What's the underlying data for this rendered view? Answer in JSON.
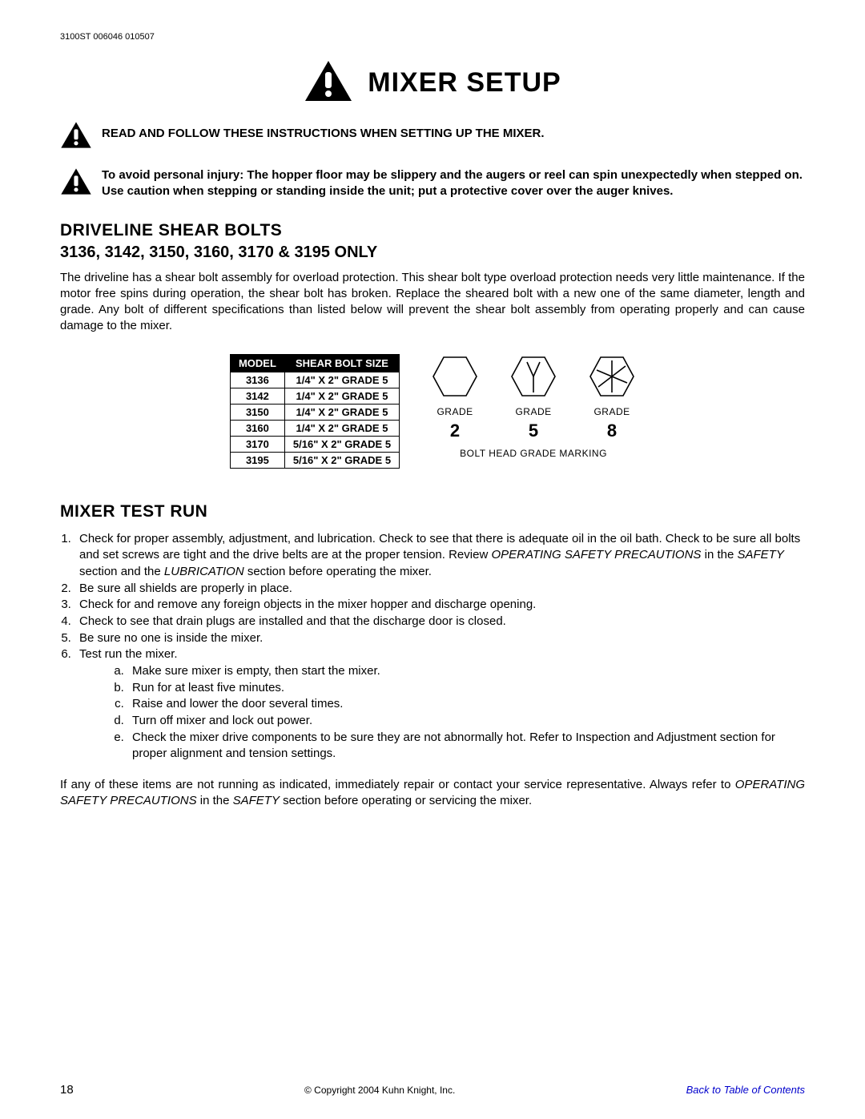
{
  "doc_id": "3100ST 006046 010507",
  "title": "MIXER SETUP",
  "warning1": "READ AND FOLLOW THESE INSTRUCTIONS WHEN SETTING UP THE MIXER.",
  "warning2": "To avoid personal injury: The hopper floor may be slippery and the augers or reel can spin unexpectedly when stepped on. Use caution when stepping or standing inside the unit; put a protective cover over the auger knives.",
  "sec1_h": "DRIVELINE SHEAR BOLTS",
  "sec1_sub": "3136, 3142, 3150, 3160, 3170 & 3195 ONLY",
  "sec1_p": "The driveline has a shear bolt assembly for overload protection. This shear bolt type overload protection needs very little maintenance. If the motor free spins during operation, the shear bolt has broken. Replace the sheared bolt with a new one of the same diameter, length and grade. Any bolt of different specifications than listed below will prevent the shear bolt assembly from operating properly and can cause damage to the mixer.",
  "table": {
    "headers": [
      "MODEL",
      "SHEAR BOLT SIZE"
    ],
    "rows": [
      [
        "3136",
        "1/4\" X 2\" GRADE 5"
      ],
      [
        "3142",
        "1/4\" X 2\" GRADE 5"
      ],
      [
        "3150",
        "1/4\" X 2\" GRADE 5"
      ],
      [
        "3160",
        "1/4\" X 2\" GRADE 5"
      ],
      [
        "3170",
        "5/16\" X 2\" GRADE 5"
      ],
      [
        "3195",
        "5/16\" X 2\" GRADE 5"
      ]
    ]
  },
  "bolt": {
    "label": "GRADE",
    "nums": [
      "2",
      "5",
      "8"
    ],
    "caption": "BOLT HEAD GRADE MARKING"
  },
  "sec2_h": "MIXER TEST RUN",
  "steps": {
    "s1a": "Check for proper assembly, adjustment, and lubrication. Check to see that there is adequate oil in the oil bath. Check to be sure all bolts and set screws are tight and the drive belts are at the proper tension. Review ",
    "s1b": "OPERATING SAFETY PRECAUTIONS",
    "s1c": " in the ",
    "s1d": "SAFETY",
    "s1e": " section and the ",
    "s1f": "LUBRICATION",
    "s1g": " section before operating the mixer.",
    "s2": "Be sure all shields are properly in place.",
    "s3": "Check for and remove any foreign objects in the mixer hopper and discharge opening.",
    "s4": "Check to see that drain plugs are installed and that the discharge door is closed.",
    "s5": "Be sure no one is inside the mixer.",
    "s6": "Test run the mixer.",
    "s6a": "Make sure mixer is empty, then start the mixer.",
    "s6b": "Run for at least five minutes.",
    "s6c": "Raise and lower the door several times.",
    "s6d": "Turn off mixer and lock out power.",
    "s6e": "Check the mixer drive components to be sure they are not abnormally hot.  Refer to Inspection and Adjustment section for proper alignment and tension settings."
  },
  "closing_a": "If any of these items are not running as indicated, immediately repair or contact your service representative. Always refer to ",
  "closing_b": "OPERATING SAFETY PRECAUTIONS",
  "closing_c": " in the ",
  "closing_d": "SAFETY",
  "closing_e": " section before operating or servicing the mixer.",
  "footer": {
    "page": "18",
    "copyright": "© Copyright 2004 Kuhn Knight, Inc.",
    "toc": "Back to Table of Contents"
  },
  "colors": {
    "text": "#000000",
    "bg": "#ffffff",
    "link": "#0000cc"
  }
}
